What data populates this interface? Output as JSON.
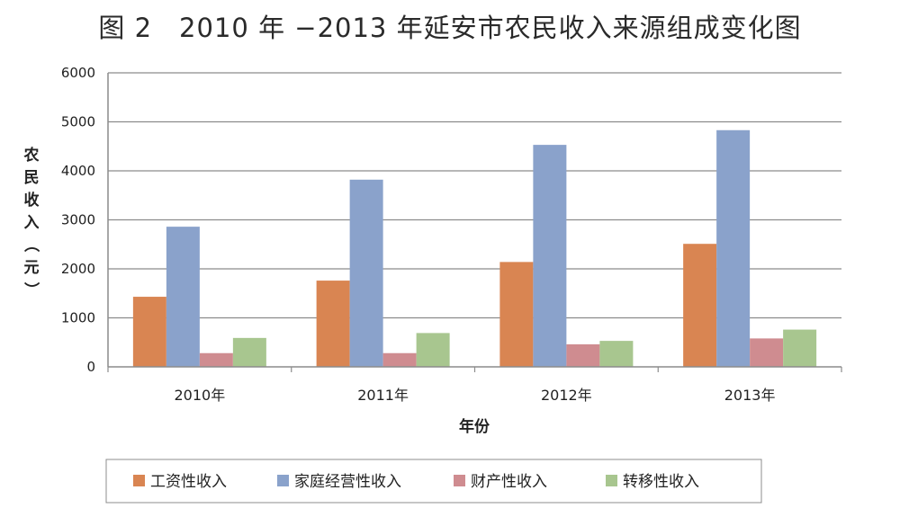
{
  "figure_title": "图 2　2010 年 −2013 年延安市农民收入来源组成变化图",
  "colors": {
    "wage": "#d98552",
    "household": "#8aa2cb",
    "property": "#cf8c90",
    "transfer": "#a8c68f",
    "grid": "#8c8c8c",
    "axis": "#8c8c8c"
  },
  "chart_data": {
    "type": "bar",
    "title": "图 2　2010 年 −2013 年延安市农民收入来源组成变化图",
    "xlabel": "年份",
    "ylabel": "农民收入（元）",
    "ylim": [
      0,
      6000
    ],
    "yticks": [
      0,
      1000,
      2000,
      3000,
      4000,
      5000,
      6000
    ],
    "grid": true,
    "legend_position": "bottom",
    "categories": [
      "2010年",
      "2011年",
      "2012年",
      "2013年"
    ],
    "series": [
      {
        "name": "工资性收入",
        "color_key": "wage",
        "values": [
          1430,
          1760,
          2140,
          2510
        ]
      },
      {
        "name": "家庭经营性收入",
        "color_key": "household",
        "values": [
          2860,
          3820,
          4530,
          4830
        ]
      },
      {
        "name": "财产性收入",
        "color_key": "property",
        "values": [
          280,
          280,
          460,
          580
        ]
      },
      {
        "name": "转移性收入",
        "color_key": "transfer",
        "values": [
          590,
          690,
          530,
          760
        ]
      }
    ]
  }
}
